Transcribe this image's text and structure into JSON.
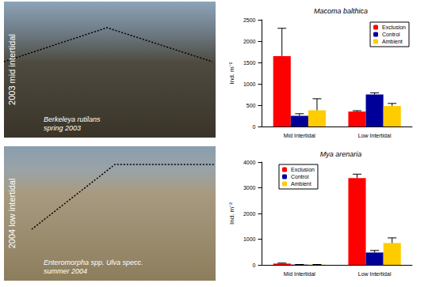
{
  "chart_data": [
    {
      "type": "bar",
      "title": "Macoma balthica",
      "categories": [
        "Mid Intertidal",
        "Low Intertidal"
      ],
      "y_label": "Ind. m⁻²",
      "series": [
        {
          "name": "Exclusion",
          "color": "#ff0000",
          "values": [
            1650,
            350
          ],
          "errors": [
            650,
            20
          ]
        },
        {
          "name": "Control",
          "color": "#000099",
          "values": [
            250,
            750
          ],
          "errors": [
            50,
            40
          ]
        },
        {
          "name": "Ambient",
          "color": "#ffcc00",
          "values": [
            380,
            480
          ],
          "errors": [
            270,
            60
          ]
        }
      ],
      "ylim": [
        0,
        2500
      ],
      "yticks": [
        0,
        500,
        1000,
        1500,
        2000,
        2500
      ],
      "grid": false,
      "legend": "upper right"
    },
    {
      "type": "bar",
      "title": "Mya arenaria",
      "categories": [
        "Mid Intertidal",
        "Low Intertidal"
      ],
      "y_label": "Ind. m⁻²",
      "series": [
        {
          "name": "Exclusion",
          "color": "#ff0000",
          "values": [
            50,
            3380
          ],
          "errors": [
            20,
            150
          ]
        },
        {
          "name": "Control",
          "color": "#000099",
          "values": [
            10,
            480
          ],
          "errors": [
            5,
            80
          ]
        },
        {
          "name": "Ambient",
          "color": "#ffcc00",
          "values": [
            10,
            850
          ],
          "errors": [
            5,
            200
          ]
        }
      ],
      "ylim": [
        0,
        4000
      ],
      "yticks": [
        0,
        1000,
        2000,
        3000,
        4000
      ],
      "grid": false,
      "legend": "upper left"
    }
  ],
  "photos": [
    {
      "label": "2003 mid intertidal",
      "caption": [
        "Berkeleya rutilans",
        "spring 2003"
      ]
    },
    {
      "label": "2004 low intertidal",
      "caption": [
        "Enteromorpha spp. Ulva specc.",
        "summer 2004"
      ]
    }
  ]
}
